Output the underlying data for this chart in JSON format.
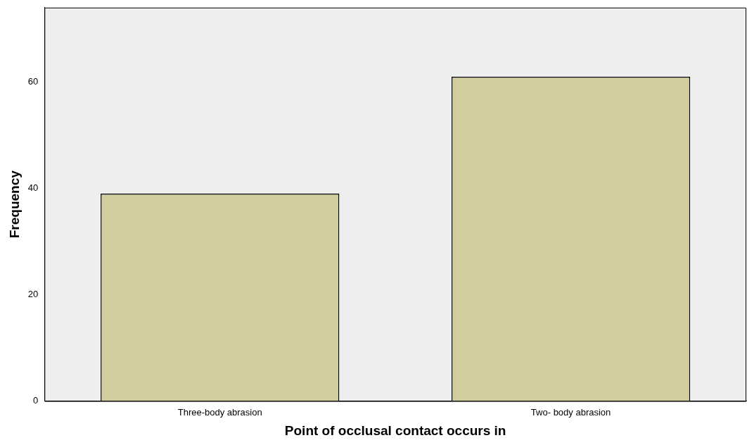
{
  "chart_data": {
    "type": "bar",
    "xlabel": "Point of occlusal contact occurs in",
    "ylabel": "Frequency",
    "categories": [
      "Three-body abrasion",
      "Two- body abrasion"
    ],
    "values": [
      39,
      61
    ],
    "color": "#d2cd9e",
    "ylim": [
      0,
      74
    ],
    "yticks": [
      0,
      20,
      40,
      60
    ],
    "grid": false,
    "legend": false
  }
}
